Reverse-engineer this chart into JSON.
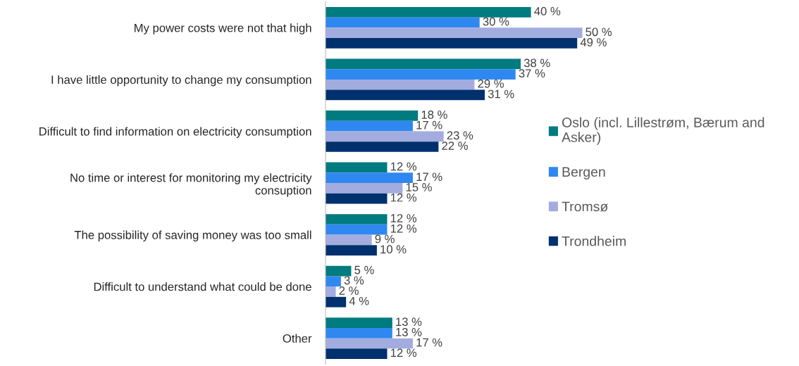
{
  "chart_data": {
    "type": "bar",
    "orientation": "horizontal",
    "legend": "right",
    "categories": [
      "My power costs were not that high",
      "I have little opportunity to change my consumption",
      "Difficult to find information on electricity consumption",
      "No time or interest for monitoring my electricity\nconsuption",
      "The possibility of saving money was too small",
      "Difficult to understand what could be done",
      "Other"
    ],
    "series": [
      {
        "name": "Oslo (incl. Lillestrøm, Bærum and\nAsker)",
        "color": "#007b7f",
        "values": [
          40,
          38,
          18,
          12,
          12,
          5,
          13
        ],
        "value_labels": [
          "40 %",
          "38 %",
          "18 %",
          "12 %",
          "12 %",
          "5 %",
          "13 %"
        ]
      },
      {
        "name": "Bergen",
        "color": "#2f88f0",
        "values": [
          30,
          37,
          17,
          17,
          12,
          3,
          13
        ],
        "value_labels": [
          "30 %",
          "37 %",
          "17 %",
          "17 %",
          "12 %",
          "3 %",
          "13 %"
        ]
      },
      {
        "name": "Tromsø",
        "color": "#a2acde",
        "values": [
          50,
          29,
          23,
          15,
          9,
          2,
          17
        ],
        "value_labels": [
          "50 %",
          "29 %",
          "23 %",
          "15 %",
          "9 %",
          "2 %",
          "17 %"
        ]
      },
      {
        "name": "Trondheim",
        "color": "#00306e",
        "values": [
          49,
          31,
          22,
          12,
          10,
          4,
          12
        ],
        "value_labels": [
          "49 %",
          "31 %",
          "22 %",
          "12 %",
          "10 %",
          "4 %",
          "12 %"
        ]
      }
    ]
  }
}
